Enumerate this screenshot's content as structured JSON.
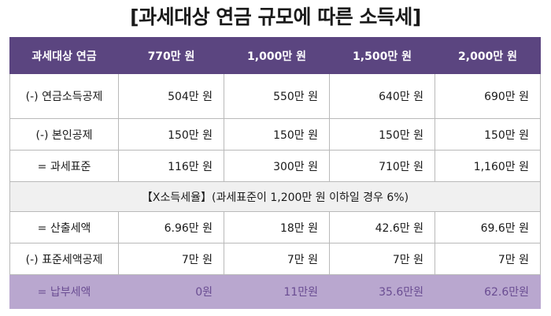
{
  "title": "[과세대상 연금 규모에 따른 소득세]",
  "header": [
    "과세대상 연금",
    "770만 원",
    "1,000만 원",
    "1,500만 원",
    "2,000만 원"
  ],
  "rows": [
    {
      "label": "(-) 연금소득공제",
      "values": [
        "504만 원",
        "550만 원",
        "640만 원",
        "690만 원"
      ]
    },
    {
      "label": "(-) 본인공제",
      "values": [
        "150만 원",
        "150만 원",
        "150만 원",
        "150만 원"
      ]
    },
    {
      "label": "= 과세표준",
      "values": [
        "116만 원",
        "300만 원",
        "710만 원",
        "1,160만 원"
      ]
    }
  ],
  "note": "【X소득세율】(과세표준이 1,200만 원 이하일 경우 6%)",
  "rows2": [
    {
      "label": "= 산출세액",
      "values": [
        "6.96만 원",
        "18만 원",
        "42.6만 원",
        "69.6만 원"
      ]
    },
    {
      "label": "(-) 표준세액공제",
      "values": [
        "7만 원",
        "7만 원",
        "7만 원",
        "7만 원"
      ]
    }
  ],
  "total": {
    "label": "= 납부세액",
    "values": [
      "0원",
      "11만원",
      "35.6만원",
      "62.6만원"
    ]
  },
  "colors": {
    "header_bg": "#5b4580",
    "total_bg": "#b9a7cf",
    "total_text": "#6a4d92",
    "note_bg": "#f0f0f0"
  }
}
